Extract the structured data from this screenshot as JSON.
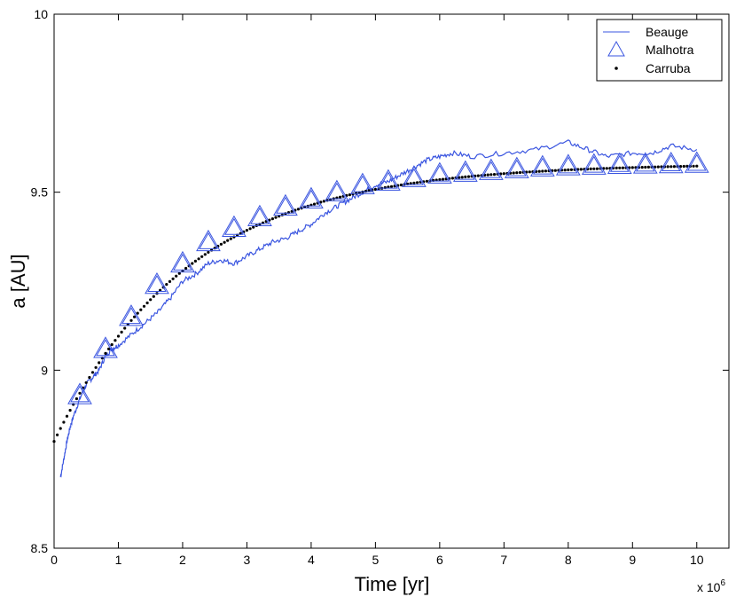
{
  "chart_data": {
    "type": "line",
    "title": "",
    "xlabel": "Time [yr]",
    "ylabel": "a [AU]",
    "x_multiplier": "x 10",
    "x_multiplier_exp": "6",
    "xlim": [
      0,
      10.5
    ],
    "ylim": [
      8.5,
      10
    ],
    "xticks": [
      0,
      1,
      2,
      3,
      4,
      5,
      6,
      7,
      8,
      9,
      10
    ],
    "xtick_labels": [
      "0",
      "1",
      "2",
      "3",
      "4",
      "5",
      "6",
      "7",
      "8",
      "9",
      "10"
    ],
    "yticks": [
      8.5,
      9,
      9.5,
      10
    ],
    "ytick_labels": [
      "8.5",
      "9",
      "9.5",
      "10"
    ],
    "grid": false,
    "legend_position": "top-right",
    "colors": {
      "beauge": "#3a55e0",
      "malhotra": "#3a55e0",
      "carruba": "#000000"
    },
    "series": [
      {
        "name": "Beauge",
        "style": "line",
        "x": [
          0.1,
          0.15,
          0.2,
          0.25,
          0.3,
          0.4,
          0.5,
          0.6,
          0.7,
          0.8,
          0.9,
          1.0,
          1.2,
          1.4,
          1.6,
          1.8,
          2.0,
          2.2,
          2.4,
          2.6,
          2.8,
          3.0,
          3.2,
          3.4,
          3.6,
          3.8,
          4.0,
          4.2,
          4.4,
          4.6,
          4.8,
          5.0,
          5.2,
          5.4,
          5.6,
          5.8,
          6.0,
          6.2,
          6.5,
          7.0,
          7.5,
          8.0,
          8.3,
          8.6,
          9.0,
          9.3,
          9.6,
          10.0
        ],
        "y": [
          8.7,
          8.75,
          8.8,
          8.84,
          8.87,
          8.92,
          8.96,
          8.98,
          9.0,
          9.04,
          9.06,
          9.07,
          9.1,
          9.13,
          9.16,
          9.2,
          9.25,
          9.27,
          9.3,
          9.31,
          9.3,
          9.32,
          9.34,
          9.36,
          9.37,
          9.39,
          9.41,
          9.44,
          9.46,
          9.48,
          9.5,
          9.52,
          9.53,
          9.55,
          9.57,
          9.59,
          9.6,
          9.61,
          9.6,
          9.61,
          9.62,
          9.64,
          9.62,
          9.6,
          9.61,
          9.61,
          9.63,
          9.62
        ]
      },
      {
        "name": "Malhotra",
        "style": "triangles",
        "x": [
          0.4,
          0.8,
          1.2,
          1.6,
          2.0,
          2.4,
          2.8,
          3.2,
          3.6,
          4.0,
          4.4,
          4.8,
          5.2,
          5.6,
          6.0,
          6.4,
          6.8,
          7.2,
          7.6,
          8.0,
          8.4,
          8.8,
          9.2,
          9.6,
          10.0
        ],
        "y": [
          8.93,
          9.06,
          9.15,
          9.24,
          9.3,
          9.36,
          9.4,
          9.43,
          9.46,
          9.48,
          9.5,
          9.52,
          9.53,
          9.54,
          9.55,
          9.555,
          9.56,
          9.565,
          9.57,
          9.573,
          9.575,
          9.577,
          9.578,
          9.579,
          9.58
        ]
      },
      {
        "name": "Carruba",
        "style": "dots",
        "function": "9.58 - 0.78*exp(-x/2.1)",
        "x_start": 0,
        "x_end": 10,
        "x_step": 0.05
      }
    ]
  }
}
